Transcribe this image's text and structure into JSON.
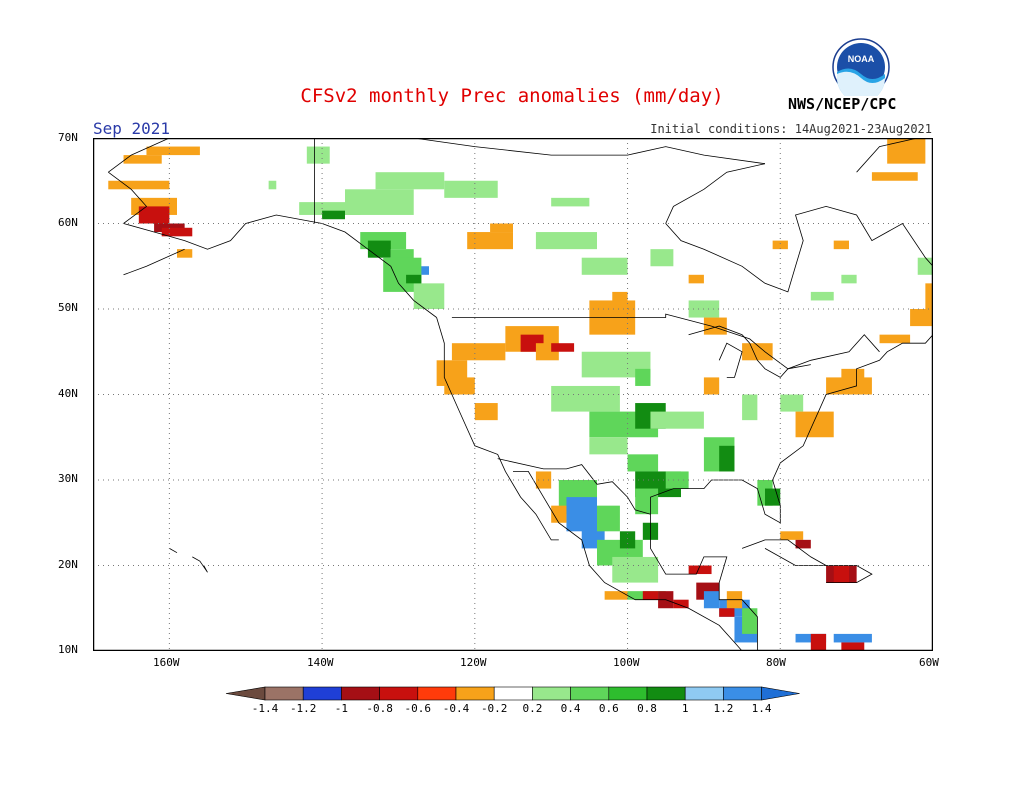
{
  "title": "CFSv2 monthly Prec anomalies (mm/day)",
  "month_label": "Sep 2021",
  "initial_conditions": "Initial conditions: 14Aug2021-23Aug2021",
  "agency": "NWS/NCEP/CPC",
  "logo_text": "NOAA",
  "lat_labels": [
    "70N",
    "60N",
    "50N",
    "40N",
    "30N",
    "20N",
    "10N"
  ],
  "lon_labels": [
    "160W",
    "140W",
    "120W",
    "100W",
    "80W",
    "60W"
  ],
  "colorbar": {
    "ticks": [
      "-1.4",
      "-1.2",
      "-1",
      "-0.8",
      "-0.6",
      "-0.4",
      "-0.2",
      "0.2",
      "0.4",
      "0.6",
      "0.8",
      "1",
      "1.2",
      "1.4"
    ],
    "colors": [
      "#9b7366",
      "#1f3fd6",
      "#a50f15",
      "#c8100e",
      "#ff3b0a",
      "#f7a21a",
      "#ffffff",
      "#98e88c",
      "#5fd65a",
      "#2ebd2e",
      "#128c12",
      "#8fcaf2",
      "#3a8ee6"
    ],
    "low_end_color": "#6b4a3e",
    "high_end_color": "#1f6fd6"
  },
  "colors": {
    "dry_orange": "#f7a21a",
    "dry_red": "#c8100e",
    "dry_darkred": "#a50f15",
    "wet_light": "#98e88c",
    "wet_mid": "#5fd65a",
    "wet_dark": "#128c12",
    "wet_blue": "#3a8ee6",
    "title_red": "#e00000",
    "month_blue": "#2a3aa8"
  }
}
